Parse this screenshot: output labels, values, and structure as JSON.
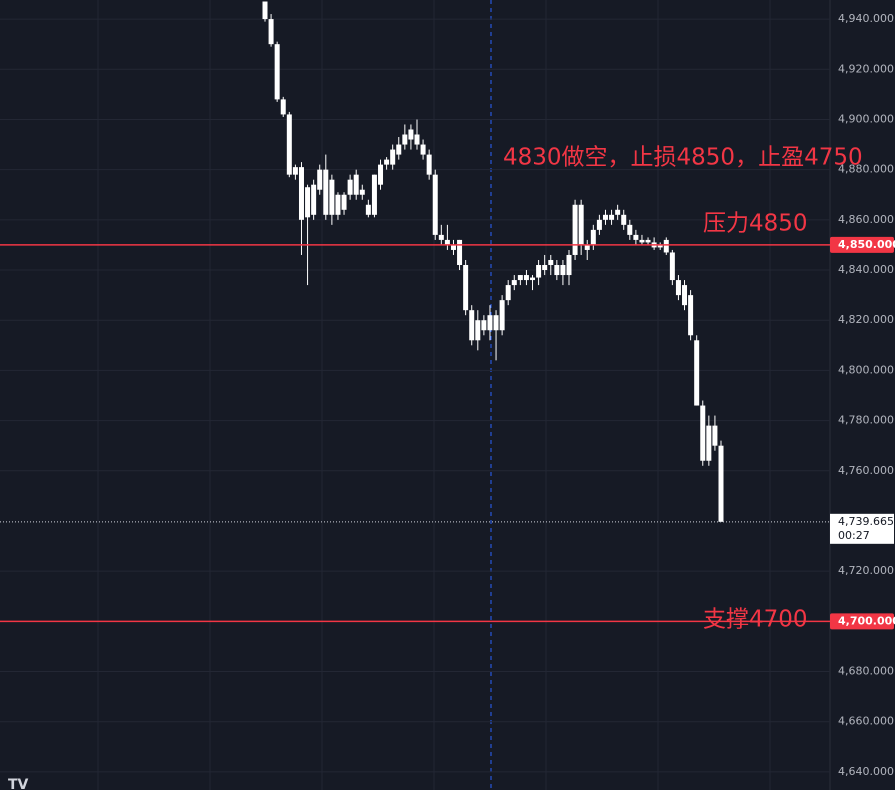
{
  "chart_data": {
    "type": "candlestick",
    "open": [
      4947,
      4940,
      4930,
      4908,
      4902,
      4878,
      4881,
      4861,
      4862,
      4872,
      4880,
      4862,
      4862,
      4864,
      4870,
      4870,
      4872,
      4866,
      4862,
      4874,
      4882,
      4882,
      4886,
      4890,
      4892,
      4894,
      4890,
      4886,
      4878,
      4854,
      4852,
      4850,
      4852,
      4842,
      4824,
      4812,
      4820,
      4816,
      4816,
      4816,
      4828,
      4834,
      4836,
      4836,
      4836,
      4837,
      4840,
      4842,
      4842,
      4838,
      4838,
      4846,
      4866,
      4848,
      4850,
      4856,
      4860,
      4860,
      4862,
      4862,
      4858,
      4854,
      4852,
      4852,
      4851,
      4849,
      4852,
      4847,
      4836,
      4834,
      4830,
      4812,
      4786,
      4764,
      4778,
      4770
    ],
    "high": [
      4947,
      4942,
      4931,
      4909,
      4903,
      4882,
      4883,
      4874,
      4876,
      4882,
      4886,
      4878,
      4871,
      4871,
      4878,
      4880,
      4874,
      4868,
      4878,
      4884,
      4885,
      4890,
      4893,
      4898,
      4898,
      4900,
      4892,
      4888,
      4880,
      4858,
      4858,
      4852,
      4852,
      4844,
      4826,
      4824,
      4822,
      4826,
      4824,
      4830,
      4836,
      4838,
      4838,
      4840,
      4838,
      4844,
      4846,
      4846,
      4844,
      4844,
      4848,
      4868,
      4868,
      4852,
      4858,
      4862,
      4864,
      4864,
      4866,
      4864,
      4860,
      4856,
      4854,
      4853,
      4853,
      4851,
      4853,
      4848,
      4838,
      4836,
      4832,
      4814,
      4788,
      4782,
      4782,
      4772
    ],
    "low": [
      4939,
      4929,
      4907,
      4901,
      4877,
      4876,
      4846,
      4834,
      4860,
      4870,
      4860,
      4858,
      4860,
      4862,
      4868,
      4868,
      4868,
      4861,
      4861,
      4872,
      4880,
      4880,
      4884,
      4888,
      4888,
      4888,
      4884,
      4876,
      4852,
      4850,
      4848,
      4846,
      4840,
      4822,
      4810,
      4808,
      4814,
      4812,
      4804,
      4814,
      4826,
      4832,
      4834,
      4834,
      4832,
      4834,
      4838,
      4838,
      4836,
      4834,
      4834,
      4844,
      4846,
      4844,
      4848,
      4854,
      4858,
      4858,
      4860,
      4856,
      4852,
      4850,
      4850,
      4850,
      4848,
      4848,
      4846,
      4834,
      4828,
      4824,
      4812,
      4786,
      4762,
      4762,
      4768,
      4740
    ],
    "close": [
      4940,
      4930,
      4908,
      4902,
      4878,
      4881,
      4860,
      4873,
      4874,
      4880,
      4862,
      4876,
      4870,
      4870,
      4876,
      4878,
      4870,
      4862,
      4878,
      4882,
      4884,
      4888,
      4890,
      4894,
      4896,
      4890,
      4886,
      4878,
      4854,
      4852,
      4850,
      4848,
      4842,
      4824,
      4812,
      4820,
      4816,
      4822,
      4822,
      4828,
      4834,
      4836,
      4838,
      4838,
      4837,
      4842,
      4842,
      4844,
      4838,
      4842,
      4846,
      4866,
      4850,
      4850,
      4856,
      4860,
      4862,
      4862,
      4864,
      4858,
      4854,
      4852,
      4851,
      4851,
      4849,
      4850,
      4847,
      4836,
      4830,
      4826,
      4814,
      4786,
      4764,
      4778,
      4770,
      4739.665
    ],
    "color": "#ffffff",
    "ylim": [
      4632.8,
      4947.6
    ],
    "yticks": [
      {
        "value": 4640,
        "label": "4,640.000"
      },
      {
        "value": 4660,
        "label": "4,660.000"
      },
      {
        "value": 4680,
        "label": "4,680.000"
      },
      {
        "value": 4720,
        "label": "4,720.000"
      },
      {
        "value": 4760,
        "label": "4,760.000"
      },
      {
        "value": 4780,
        "label": "4,780.000"
      },
      {
        "value": 4800,
        "label": "4,800.000"
      },
      {
        "value": 4820,
        "label": "4,820.000"
      },
      {
        "value": 4840,
        "label": "4,840.000"
      },
      {
        "value": 4860,
        "label": "4,860.000"
      },
      {
        "value": 4880,
        "label": "4,880.000"
      },
      {
        "value": 4900,
        "label": "4,900.000"
      },
      {
        "value": 4920,
        "label": "4,920.000"
      },
      {
        "value": 4940,
        "label": "4,940.000"
      }
    ],
    "grid": true,
    "price_lines": [
      {
        "value": 4850,
        "label": "4,850.000",
        "color": "#f23645"
      },
      {
        "value": 4700,
        "label": "4,700.000",
        "color": "#f23645"
      }
    ],
    "last_price": {
      "value": 4739.665,
      "label": "4,739.665",
      "countdown": "00:27"
    },
    "annotations": [
      "4830做空，止损4850，止盈4750",
      "压力4850",
      "支撑4700"
    ]
  }
}
